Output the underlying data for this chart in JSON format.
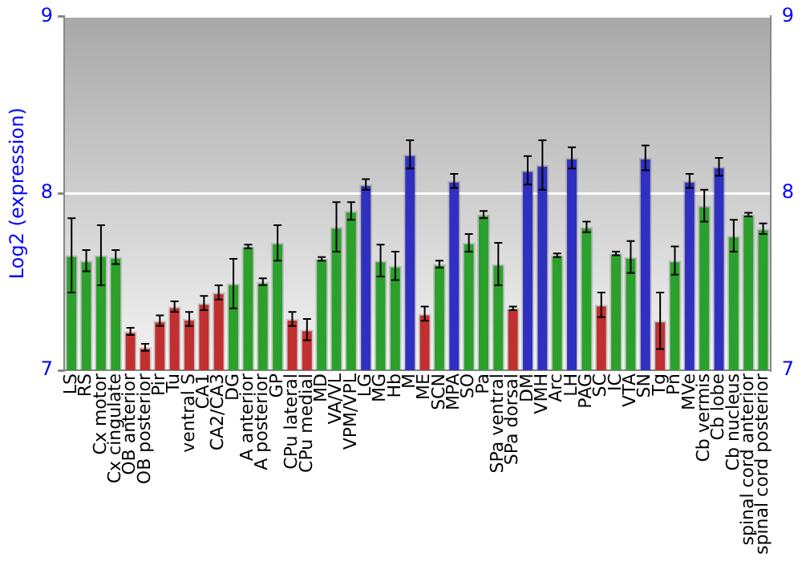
{
  "chart_data": {
    "type": "bar",
    "ylabel": "Log2 (expression)",
    "categories": [
      "LS",
      "RS",
      "Cx motor",
      "Cx cingulate",
      "OB anterior",
      "OB posterior",
      "Pir",
      "Tu",
      "ventral S",
      "CA1",
      "CA2/CA3",
      "DG",
      "A anterior",
      "A posterior",
      "GP",
      "CPu lateral",
      "CPu medial",
      "MD",
      "VA/VL",
      "VPM/VPL",
      "LG",
      "MG",
      "Hb",
      "M",
      "ME",
      "SCN",
      "MPA",
      "SO",
      "Pa",
      "SPa ventral",
      "SPa dorsal",
      "DM",
      "VMH",
      "Arc",
      "LH",
      "PAG",
      "SC",
      "IC",
      "VTA",
      "SN",
      "Tg",
      "Pn",
      "MVe",
      "Cb vermis",
      "Cb lobe",
      "Cb nucleus",
      "spinal cord anterior",
      "spinal cord posterior"
    ],
    "values": [
      7.65,
      7.62,
      7.65,
      7.64,
      7.22,
      7.13,
      7.28,
      7.36,
      7.29,
      7.38,
      7.44,
      7.49,
      7.7,
      7.5,
      7.72,
      7.29,
      7.23,
      7.63,
      7.81,
      7.9,
      8.05,
      7.62,
      7.59,
      8.22,
      7.32,
      7.6,
      8.07,
      7.72,
      7.88,
      7.6,
      7.35,
      8.13,
      8.16,
      7.65,
      8.2,
      7.81,
      7.37,
      7.66,
      7.64,
      8.2,
      7.28,
      7.62,
      8.07,
      7.93,
      8.15,
      7.76,
      7.88,
      7.8
    ],
    "errors": [
      0.21,
      0.06,
      0.17,
      0.04,
      0.02,
      0.02,
      0.03,
      0.03,
      0.04,
      0.04,
      0.04,
      0.14,
      0.01,
      0.02,
      0.1,
      0.04,
      0.06,
      0.01,
      0.14,
      0.05,
      0.03,
      0.09,
      0.08,
      0.08,
      0.04,
      0.02,
      0.04,
      0.05,
      0.02,
      0.12,
      0.01,
      0.08,
      0.14,
      0.01,
      0.06,
      0.03,
      0.07,
      0.01,
      0.09,
      0.07,
      0.16,
      0.08,
      0.04,
      0.09,
      0.05,
      0.09,
      0.01,
      0.03
    ],
    "colors": [
      "#2ca02c",
      "#2ca02c",
      "#2ca02c",
      "#2ca02c",
      "#c03030",
      "#c03030",
      "#c03030",
      "#c03030",
      "#c03030",
      "#c03030",
      "#c03030",
      "#2ca02c",
      "#2ca02c",
      "#2ca02c",
      "#2ca02c",
      "#c03030",
      "#c03030",
      "#2ca02c",
      "#2ca02c",
      "#2ca02c",
      "#3030c0",
      "#2ca02c",
      "#2ca02c",
      "#3030c0",
      "#c03030",
      "#2ca02c",
      "#3030c0",
      "#2ca02c",
      "#2ca02c",
      "#2ca02c",
      "#c03030",
      "#3030c0",
      "#3030c0",
      "#2ca02c",
      "#3030c0",
      "#2ca02c",
      "#c03030",
      "#2ca02c",
      "#2ca02c",
      "#3030c0",
      "#c03030",
      "#2ca02c",
      "#3030c0",
      "#2ca02c",
      "#3030c0",
      "#2ca02c",
      "#2ca02c",
      "#2ca02c"
    ],
    "ylim": [
      7,
      9
    ],
    "yticks": [
      7,
      8,
      9
    ],
    "y2lim": [
      7,
      9
    ],
    "y2ticks": [
      7,
      8,
      9
    ],
    "grid": "y",
    "legend": false
  }
}
